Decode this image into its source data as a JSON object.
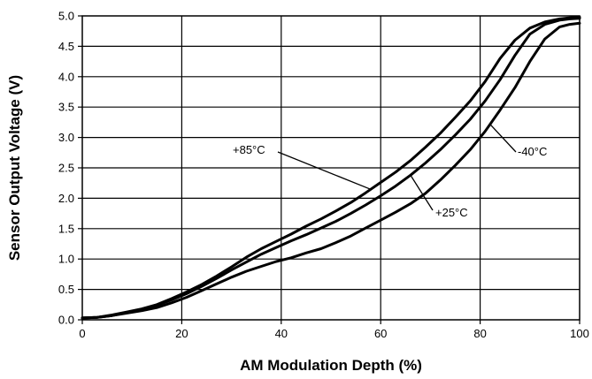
{
  "chart_data": {
    "type": "line",
    "title": "",
    "xlabel": "AM Modulation Depth (%)",
    "ylabel": "Sensor Output Voltage (V)",
    "xlim": [
      0,
      100
    ],
    "ylim": [
      0,
      5.0
    ],
    "xticks": [
      "0",
      "20",
      "40",
      "60",
      "80",
      "100"
    ],
    "yticks": [
      "0.0",
      "0.5",
      "1.0",
      "1.5",
      "2.0",
      "2.5",
      "3.0",
      "3.5",
      "4.0",
      "4.5",
      "5.0"
    ],
    "grid": true,
    "legend": "none",
    "series": [
      {
        "name": "+85°C",
        "x": [
          0,
          3,
          6,
          9,
          12,
          15,
          18,
          21,
          24,
          27,
          30,
          33,
          36,
          39,
          42,
          45,
          48,
          51,
          54,
          57,
          60,
          63,
          66,
          69,
          72,
          75,
          78,
          81,
          84,
          87,
          90,
          93,
          96,
          98,
          100
        ],
        "y": [
          0.03,
          0.04,
          0.08,
          0.13,
          0.18,
          0.25,
          0.35,
          0.46,
          0.58,
          0.72,
          0.87,
          1.03,
          1.17,
          1.29,
          1.41,
          1.54,
          1.66,
          1.79,
          1.93,
          2.09,
          2.26,
          2.43,
          2.62,
          2.84,
          3.07,
          3.33,
          3.6,
          3.92,
          4.3,
          4.6,
          4.8,
          4.9,
          4.95,
          4.97,
          4.98
        ]
      },
      {
        "name": "+25°C",
        "x": [
          0,
          3,
          6,
          9,
          12,
          15,
          18,
          21,
          24,
          27,
          30,
          33,
          36,
          39,
          42,
          45,
          48,
          51,
          54,
          57,
          60,
          63,
          66,
          69,
          72,
          75,
          78,
          81,
          84,
          87,
          90,
          93,
          96,
          98,
          100
        ],
        "y": [
          0.03,
          0.04,
          0.07,
          0.12,
          0.17,
          0.24,
          0.33,
          0.43,
          0.55,
          0.68,
          0.82,
          0.95,
          1.08,
          1.19,
          1.3,
          1.4,
          1.51,
          1.62,
          1.75,
          1.89,
          2.04,
          2.2,
          2.38,
          2.58,
          2.8,
          3.04,
          3.3,
          3.6,
          3.95,
          4.35,
          4.7,
          4.86,
          4.93,
          4.95,
          4.96
        ]
      },
      {
        "name": "-40°C",
        "x": [
          0,
          3,
          6,
          9,
          12,
          15,
          18,
          21,
          24,
          27,
          30,
          33,
          36,
          39,
          42,
          45,
          48,
          51,
          54,
          57,
          60,
          63,
          66,
          69,
          72,
          75,
          78,
          81,
          84,
          87,
          90,
          93,
          96,
          98,
          100
        ],
        "y": [
          0.03,
          0.04,
          0.07,
          0.11,
          0.15,
          0.2,
          0.28,
          0.37,
          0.48,
          0.59,
          0.7,
          0.8,
          0.88,
          0.96,
          1.02,
          1.1,
          1.17,
          1.27,
          1.38,
          1.51,
          1.64,
          1.77,
          1.91,
          2.08,
          2.3,
          2.54,
          2.8,
          3.1,
          3.45,
          3.82,
          4.25,
          4.62,
          4.82,
          4.86,
          4.88
        ]
      }
    ],
    "annotations": [
      {
        "text": "+85°C",
        "series": "+85°C"
      },
      {
        "text": "+25°C",
        "series": "+25°C"
      },
      {
        "text": "-40°C",
        "series": "-40°C"
      }
    ]
  }
}
